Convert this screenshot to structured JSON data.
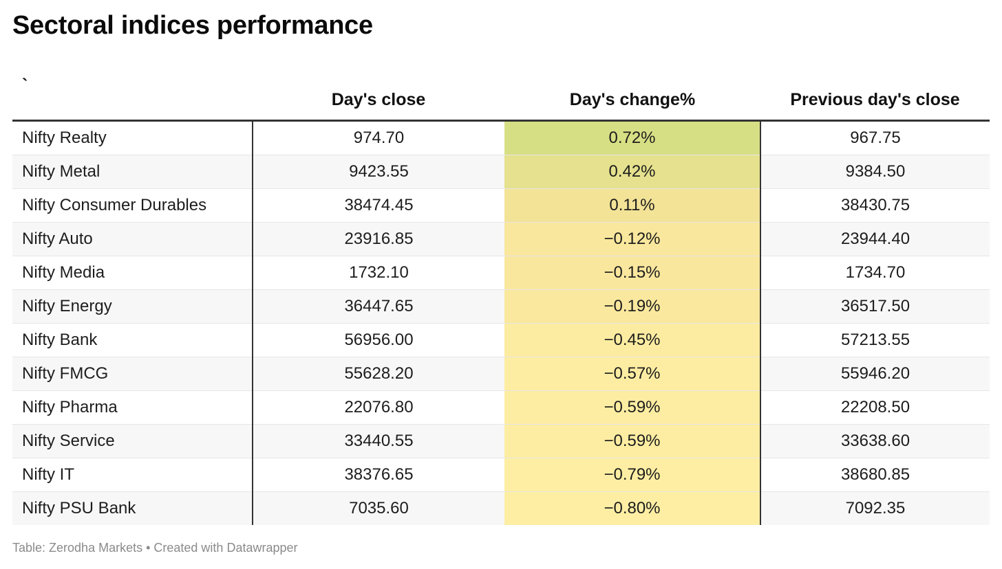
{
  "chart_data": {
    "type": "table",
    "title": "Sectoral indices performance",
    "columns": [
      "`",
      "Day's close",
      "Day's change%",
      "Previous day's close"
    ],
    "rows": [
      {
        "name": "Nifty Realty",
        "close": "974.70",
        "change": "0.72%",
        "prev": "967.75",
        "change_value": 0.72
      },
      {
        "name": "Nifty Metal",
        "close": "9423.55",
        "change": "0.42%",
        "prev": "9384.50",
        "change_value": 0.42
      },
      {
        "name": "Nifty Consumer Durables",
        "close": "38474.45",
        "change": "0.11%",
        "prev": "38430.75",
        "change_value": 0.11
      },
      {
        "name": "Nifty Auto",
        "close": "23916.85",
        "change": "−0.12%",
        "prev": "23944.40",
        "change_value": -0.12
      },
      {
        "name": "Nifty Media",
        "close": "1732.10",
        "change": "−0.15%",
        "prev": "1734.70",
        "change_value": -0.15
      },
      {
        "name": "Nifty Energy",
        "close": "36447.65",
        "change": "−0.19%",
        "prev": "36517.50",
        "change_value": -0.19
      },
      {
        "name": "Nifty Bank",
        "close": "56956.00",
        "change": "−0.45%",
        "prev": "57213.55",
        "change_value": -0.45
      },
      {
        "name": "Nifty FMCG",
        "close": "55628.20",
        "change": "−0.57%",
        "prev": "55946.20",
        "change_value": -0.57
      },
      {
        "name": "Nifty Pharma",
        "close": "22076.80",
        "change": "−0.59%",
        "prev": "22208.50",
        "change_value": -0.59
      },
      {
        "name": "Nifty Service",
        "close": "33440.55",
        "change": "−0.59%",
        "prev": "33638.60",
        "change_value": -0.59
      },
      {
        "name": "Nifty IT",
        "close": "38376.65",
        "change": "−0.79%",
        "prev": "38680.85",
        "change_value": -0.79
      },
      {
        "name": "Nifty PSU Bank",
        "close": "7035.60",
        "change": "−0.80%",
        "prev": "7092.35",
        "change_value": -0.8
      }
    ],
    "change_color_scale": {
      "low": "#fdeea3",
      "mid": "#f8e49b",
      "high": "#d7df84"
    },
    "source": "Table: Zerodha Markets • Created with Datawrapper"
  }
}
